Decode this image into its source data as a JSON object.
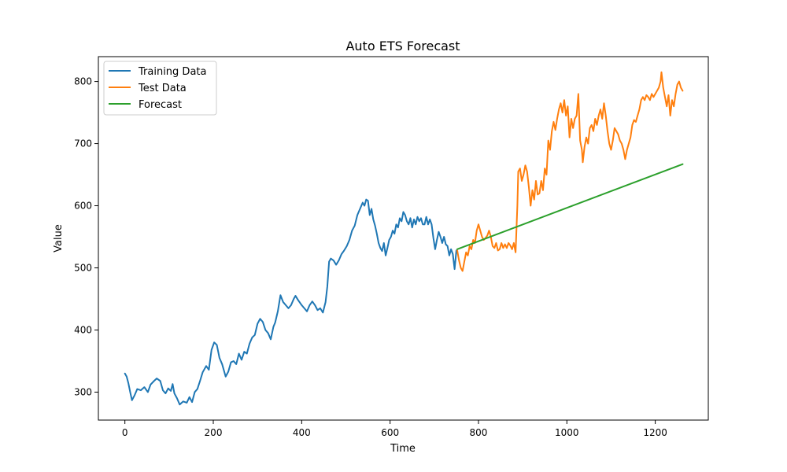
{
  "chart_data": {
    "type": "line",
    "title": "Auto ETS Forecast",
    "xlabel": "Time",
    "ylabel": "Value",
    "xlim": [
      -60,
      1320
    ],
    "ylim": [
      255,
      840
    ],
    "xticks": [
      0,
      200,
      400,
      600,
      800,
      1000,
      1200
    ],
    "yticks": [
      300,
      400,
      500,
      600,
      700,
      800
    ],
    "grid": false,
    "legend_position": "top-left",
    "series": [
      {
        "name": "Training Data",
        "color": "#1f77b4",
        "points": [
          [
            0,
            330
          ],
          [
            4,
            325
          ],
          [
            8,
            314
          ],
          [
            12,
            300
          ],
          [
            16,
            287
          ],
          [
            22,
            295
          ],
          [
            28,
            305
          ],
          [
            36,
            303
          ],
          [
            44,
            308
          ],
          [
            52,
            300
          ],
          [
            58,
            312
          ],
          [
            66,
            318
          ],
          [
            72,
            322
          ],
          [
            80,
            318
          ],
          [
            86,
            303
          ],
          [
            92,
            298
          ],
          [
            98,
            306
          ],
          [
            104,
            302
          ],
          [
            108,
            313
          ],
          [
            112,
            298
          ],
          [
            118,
            290
          ],
          [
            124,
            280
          ],
          [
            132,
            285
          ],
          [
            140,
            283
          ],
          [
            146,
            292
          ],
          [
            152,
            284
          ],
          [
            158,
            300
          ],
          [
            164,
            305
          ],
          [
            170,
            318
          ],
          [
            176,
            332
          ],
          [
            184,
            342
          ],
          [
            190,
            336
          ],
          [
            196,
            368
          ],
          [
            202,
            380
          ],
          [
            208,
            376
          ],
          [
            214,
            355
          ],
          [
            220,
            345
          ],
          [
            228,
            325
          ],
          [
            234,
            333
          ],
          [
            240,
            348
          ],
          [
            246,
            350
          ],
          [
            252,
            345
          ],
          [
            258,
            362
          ],
          [
            264,
            352
          ],
          [
            270,
            365
          ],
          [
            276,
            362
          ],
          [
            282,
            378
          ],
          [
            288,
            388
          ],
          [
            294,
            392
          ],
          [
            300,
            410
          ],
          [
            306,
            418
          ],
          [
            312,
            413
          ],
          [
            318,
            400
          ],
          [
            324,
            395
          ],
          [
            330,
            385
          ],
          [
            336,
            405
          ],
          [
            340,
            412
          ],
          [
            346,
            430
          ],
          [
            352,
            456
          ],
          [
            358,
            445
          ],
          [
            364,
            440
          ],
          [
            370,
            435
          ],
          [
            376,
            440
          ],
          [
            382,
            450
          ],
          [
            386,
            455
          ],
          [
            392,
            448
          ],
          [
            400,
            440
          ],
          [
            406,
            435
          ],
          [
            412,
            430
          ],
          [
            418,
            440
          ],
          [
            424,
            446
          ],
          [
            430,
            440
          ],
          [
            436,
            432
          ],
          [
            442,
            435
          ],
          [
            448,
            428
          ],
          [
            454,
            445
          ],
          [
            458,
            470
          ],
          [
            462,
            510
          ],
          [
            466,
            515
          ],
          [
            472,
            512
          ],
          [
            478,
            505
          ],
          [
            484,
            512
          ],
          [
            490,
            522
          ],
          [
            496,
            528
          ],
          [
            502,
            535
          ],
          [
            508,
            545
          ],
          [
            514,
            560
          ],
          [
            520,
            568
          ],
          [
            526,
            585
          ],
          [
            532,
            595
          ],
          [
            538,
            605
          ],
          [
            542,
            600
          ],
          [
            546,
            610
          ],
          [
            550,
            608
          ],
          [
            554,
            585
          ],
          [
            558,
            595
          ],
          [
            562,
            578
          ],
          [
            566,
            568
          ],
          [
            570,
            555
          ],
          [
            574,
            540
          ],
          [
            578,
            532
          ],
          [
            582,
            527
          ],
          [
            586,
            540
          ],
          [
            590,
            520
          ],
          [
            594,
            532
          ],
          [
            598,
            545
          ],
          [
            602,
            550
          ],
          [
            606,
            560
          ],
          [
            610,
            555
          ],
          [
            614,
            570
          ],
          [
            618,
            565
          ],
          [
            622,
            580
          ],
          [
            626,
            575
          ],
          [
            630,
            590
          ],
          [
            634,
            585
          ],
          [
            638,
            575
          ],
          [
            642,
            570
          ],
          [
            646,
            580
          ],
          [
            650,
            565
          ],
          [
            654,
            578
          ],
          [
            658,
            570
          ],
          [
            662,
            582
          ],
          [
            666,
            575
          ],
          [
            670,
            580
          ],
          [
            674,
            570
          ],
          [
            678,
            570
          ],
          [
            682,
            582
          ],
          [
            686,
            570
          ],
          [
            690,
            578
          ],
          [
            694,
            570
          ],
          [
            698,
            548
          ],
          [
            702,
            530
          ],
          [
            706,
            545
          ],
          [
            710,
            558
          ],
          [
            714,
            550
          ],
          [
            718,
            540
          ],
          [
            722,
            550
          ],
          [
            726,
            538
          ],
          [
            730,
            535
          ],
          [
            734,
            520
          ],
          [
            738,
            530
          ],
          [
            742,
            522
          ],
          [
            746,
            498
          ],
          [
            750,
            528
          ]
        ]
      },
      {
        "name": "Test Data",
        "color": "#ff7f0e",
        "points": [
          [
            752,
            528
          ],
          [
            756,
            512
          ],
          [
            760,
            500
          ],
          [
            764,
            495
          ],
          [
            768,
            510
          ],
          [
            772,
            525
          ],
          [
            776,
            520
          ],
          [
            780,
            535
          ],
          [
            784,
            530
          ],
          [
            788,
            545
          ],
          [
            792,
            540
          ],
          [
            796,
            560
          ],
          [
            800,
            570
          ],
          [
            804,
            560
          ],
          [
            808,
            550
          ],
          [
            812,
            545
          ],
          [
            816,
            548
          ],
          [
            820,
            552
          ],
          [
            824,
            560
          ],
          [
            828,
            550
          ],
          [
            832,
            535
          ],
          [
            836,
            532
          ],
          [
            840,
            540
          ],
          [
            844,
            528
          ],
          [
            848,
            530
          ],
          [
            852,
            540
          ],
          [
            856,
            532
          ],
          [
            860,
            538
          ],
          [
            864,
            532
          ],
          [
            868,
            540
          ],
          [
            872,
            536
          ],
          [
            876,
            530
          ],
          [
            880,
            540
          ],
          [
            884,
            525
          ],
          [
            888,
            600
          ],
          [
            890,
            655
          ],
          [
            894,
            660
          ],
          [
            898,
            640
          ],
          [
            902,
            650
          ],
          [
            906,
            665
          ],
          [
            910,
            655
          ],
          [
            914,
            630
          ],
          [
            918,
            600
          ],
          [
            922,
            625
          ],
          [
            926,
            610
          ],
          [
            930,
            640
          ],
          [
            934,
            618
          ],
          [
            938,
            620
          ],
          [
            942,
            640
          ],
          [
            946,
            625
          ],
          [
            950,
            660
          ],
          [
            954,
            650
          ],
          [
            958,
            705
          ],
          [
            962,
            690
          ],
          [
            966,
            720
          ],
          [
            970,
            735
          ],
          [
            974,
            722
          ],
          [
            978,
            740
          ],
          [
            982,
            755
          ],
          [
            986,
            765
          ],
          [
            990,
            750
          ],
          [
            994,
            770
          ],
          [
            998,
            745
          ],
          [
            1002,
            760
          ],
          [
            1006,
            710
          ],
          [
            1010,
            740
          ],
          [
            1014,
            725
          ],
          [
            1018,
            740
          ],
          [
            1022,
            745
          ],
          [
            1026,
            780
          ],
          [
            1030,
            705
          ],
          [
            1034,
            690
          ],
          [
            1036,
            670
          ],
          [
            1040,
            695
          ],
          [
            1044,
            710
          ],
          [
            1048,
            700
          ],
          [
            1052,
            725
          ],
          [
            1056,
            730
          ],
          [
            1060,
            720
          ],
          [
            1064,
            740
          ],
          [
            1068,
            730
          ],
          [
            1072,
            745
          ],
          [
            1076,
            755
          ],
          [
            1080,
            740
          ],
          [
            1084,
            765
          ],
          [
            1088,
            745
          ],
          [
            1092,
            720
          ],
          [
            1096,
            700
          ],
          [
            1100,
            690
          ],
          [
            1104,
            705
          ],
          [
            1108,
            725
          ],
          [
            1112,
            720
          ],
          [
            1116,
            715
          ],
          [
            1120,
            705
          ],
          [
            1124,
            700
          ],
          [
            1128,
            690
          ],
          [
            1132,
            675
          ],
          [
            1136,
            690
          ],
          [
            1140,
            700
          ],
          [
            1144,
            710
          ],
          [
            1148,
            730
          ],
          [
            1152,
            738
          ],
          [
            1156,
            735
          ],
          [
            1160,
            745
          ],
          [
            1164,
            755
          ],
          [
            1168,
            770
          ],
          [
            1172,
            775
          ],
          [
            1176,
            770
          ],
          [
            1180,
            778
          ],
          [
            1184,
            775
          ],
          [
            1188,
            770
          ],
          [
            1192,
            780
          ],
          [
            1196,
            775
          ],
          [
            1200,
            780
          ],
          [
            1204,
            785
          ],
          [
            1208,
            790
          ],
          [
            1212,
            800
          ],
          [
            1214,
            815
          ],
          [
            1218,
            790
          ],
          [
            1222,
            775
          ],
          [
            1226,
            760
          ],
          [
            1230,
            778
          ],
          [
            1234,
            745
          ],
          [
            1238,
            770
          ],
          [
            1242,
            760
          ],
          [
            1246,
            780
          ],
          [
            1250,
            795
          ],
          [
            1254,
            800
          ],
          [
            1258,
            790
          ],
          [
            1262,
            785
          ]
        ]
      },
      {
        "name": "Forecast",
        "color": "#2ca02c",
        "points": [
          [
            752,
            530
          ],
          [
            1262,
            667
          ]
        ]
      }
    ]
  }
}
